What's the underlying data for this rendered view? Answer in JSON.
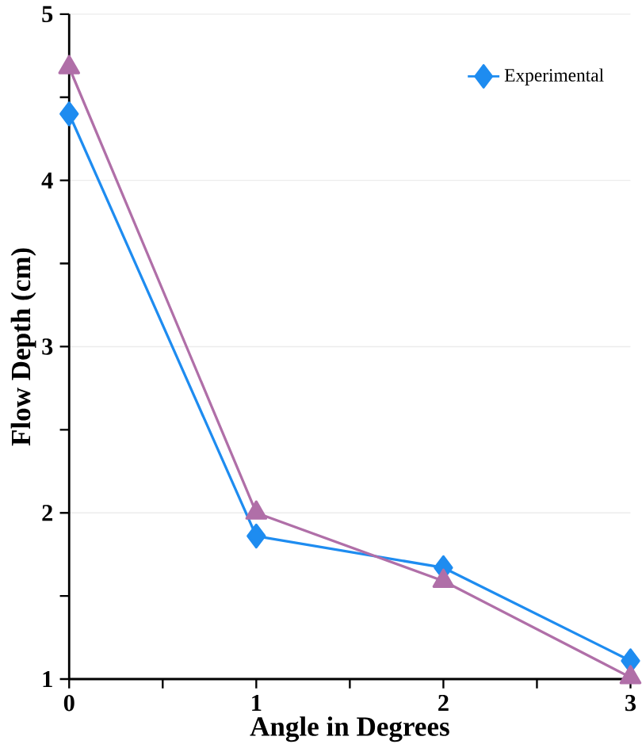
{
  "chart_data": {
    "type": "line",
    "xlabel": "Angle in Degrees",
    "ylabel": "Flow Depth (cm)",
    "x": [
      0,
      1,
      2,
      3
    ],
    "xlim": [
      0,
      3
    ],
    "xticks": [
      0,
      1,
      2,
      3
    ],
    "ylim": [
      1,
      5
    ],
    "yticks": [
      1,
      2,
      3,
      4,
      5
    ],
    "grid": "y",
    "legend": "top right",
    "series": [
      {
        "name": "Experimental",
        "color": "#1e8cf0",
        "marker": "diamond",
        "values": [
          4.4,
          1.86,
          1.67,
          1.11
        ]
      },
      {
        "color": "#b06fa8",
        "marker": "triangle",
        "values": [
          4.68,
          2.0,
          1.59,
          1.01
        ]
      }
    ]
  }
}
